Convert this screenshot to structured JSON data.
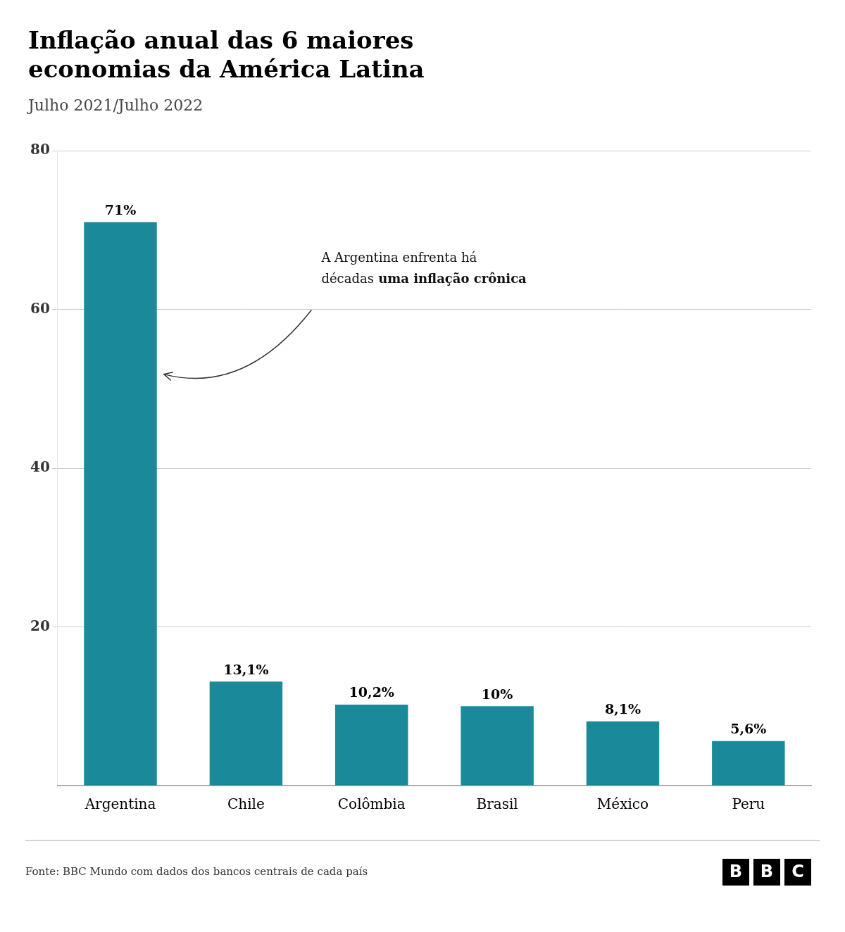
{
  "chart_data": {
    "type": "bar",
    "title": [
      "Inflação anual das 6 maiores",
      "economias da América Latina"
    ],
    "subtitle": "Julho 2021/Julho 2022",
    "categories": [
      "Argentina",
      "Chile",
      "Colômbia",
      "Brasil",
      "México",
      "Peru"
    ],
    "values": [
      71,
      13.1,
      10.2,
      10,
      8.1,
      5.6
    ],
    "value_labels": [
      "71%",
      "13,1%",
      "10,2%",
      "10%",
      "8,1%",
      "5,6%"
    ],
    "data_labels": true,
    "color": "#1a8a9a",
    "ylim": [
      0,
      80
    ],
    "yticks": [
      20,
      40,
      60,
      80
    ],
    "grid": true,
    "legend": false,
    "annotation": [
      [
        "A Argentina enfrenta há"
      ],
      [
        "décadas",
        "uma inflação crônica"
      ]
    ],
    "source": "Fonte: BBC Mundo com dados dos bancos centrais de cada país",
    "logo": "BBC"
  }
}
